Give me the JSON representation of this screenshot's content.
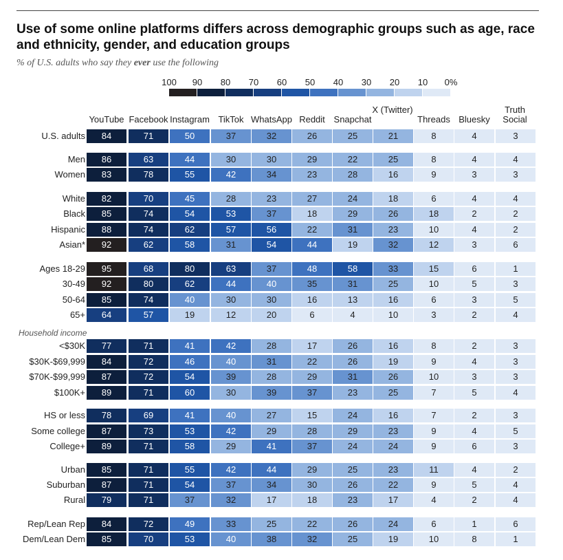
{
  "title": "Use of some online platforms differs across demographic groups such as age, race and ethnicity, gender, and education groups",
  "subtitle_pre": "% of U.S. adults who say they ",
  "subtitle_em": "ever",
  "subtitle_post": " use the following",
  "section_label": "Household income",
  "legend_labels": [
    "100",
    "90",
    "80",
    "70",
    "60",
    "50",
    "40",
    "30",
    "20",
    "10",
    "0%"
  ],
  "colors": {
    "scale": [
      "#231f20",
      "#0d1f3c",
      "#102e5e",
      "#173f80",
      "#1f55a5",
      "#3e72bf",
      "#6793d0",
      "#94b5e0",
      "#bfd3ee",
      "#dfe9f6"
    ],
    "text_dark": "#ffffff",
    "text_light": "#222222"
  },
  "chart_data": {
    "type": "table",
    "title": "Use of some online platforms differs across demographic groups such as age, race and ethnicity, gender, and education groups",
    "columns": [
      "YouTube",
      "Facebook",
      "Instagram",
      "TikTok",
      "WhatsApp",
      "Reddit",
      "Snapchat",
      "X (Twitter)",
      "Threads",
      "Bluesky",
      "Truth Social"
    ],
    "rows": [
      {
        "label": "U.S. adults",
        "values": [
          84,
          71,
          50,
          37,
          32,
          26,
          25,
          21,
          8,
          4,
          3
        ]
      },
      {
        "label": "Men",
        "values": [
          86,
          63,
          44,
          30,
          30,
          29,
          22,
          25,
          8,
          4,
          4
        ]
      },
      {
        "label": "Women",
        "values": [
          83,
          78,
          55,
          42,
          34,
          23,
          28,
          16,
          9,
          3,
          3
        ]
      },
      {
        "label": "White",
        "values": [
          82,
          70,
          45,
          28,
          23,
          27,
          24,
          18,
          6,
          4,
          4
        ]
      },
      {
        "label": "Black",
        "values": [
          85,
          74,
          54,
          53,
          37,
          18,
          29,
          26,
          18,
          2,
          2
        ]
      },
      {
        "label": "Hispanic",
        "values": [
          88,
          74,
          62,
          57,
          56,
          22,
          31,
          23,
          10,
          4,
          2
        ]
      },
      {
        "label": "Asian*",
        "values": [
          92,
          62,
          58,
          31,
          54,
          44,
          19,
          32,
          12,
          3,
          6
        ]
      },
      {
        "label": "Ages 18-29",
        "values": [
          95,
          68,
          80,
          63,
          37,
          48,
          58,
          33,
          15,
          6,
          1
        ]
      },
      {
        "label": "30-49",
        "values": [
          92,
          80,
          62,
          44,
          40,
          35,
          31,
          25,
          10,
          5,
          3
        ]
      },
      {
        "label": "50-64",
        "values": [
          85,
          74,
          40,
          30,
          30,
          16,
          13,
          16,
          6,
          3,
          5
        ]
      },
      {
        "label": "65+",
        "values": [
          64,
          57,
          19,
          12,
          20,
          6,
          4,
          10,
          3,
          2,
          4
        ]
      },
      {
        "label": "<$30K",
        "values": [
          77,
          71,
          41,
          42,
          28,
          17,
          26,
          16,
          8,
          2,
          3
        ]
      },
      {
        "label": "$30K-$69,999",
        "values": [
          84,
          72,
          46,
          40,
          31,
          22,
          26,
          19,
          9,
          4,
          3
        ]
      },
      {
        "label": "$70K-$99,999",
        "values": [
          87,
          72,
          54,
          39,
          28,
          29,
          31,
          26,
          10,
          3,
          3
        ]
      },
      {
        "label": "$100K+",
        "values": [
          89,
          71,
          60,
          30,
          39,
          37,
          23,
          25,
          7,
          5,
          4
        ]
      },
      {
        "label": "HS or less",
        "values": [
          78,
          69,
          41,
          40,
          27,
          15,
          24,
          16,
          7,
          2,
          3
        ]
      },
      {
        "label": "Some college",
        "values": [
          87,
          73,
          53,
          42,
          29,
          28,
          29,
          23,
          9,
          4,
          5
        ]
      },
      {
        "label": "College+",
        "values": [
          89,
          71,
          58,
          29,
          41,
          37,
          24,
          24,
          9,
          6,
          3
        ]
      },
      {
        "label": "Urban",
        "values": [
          85,
          71,
          55,
          42,
          44,
          29,
          25,
          23,
          11,
          4,
          2
        ]
      },
      {
        "label": "Suburban",
        "values": [
          87,
          71,
          54,
          37,
          34,
          30,
          26,
          22,
          9,
          5,
          4
        ]
      },
      {
        "label": "Rural",
        "values": [
          79,
          71,
          37,
          32,
          17,
          18,
          23,
          17,
          4,
          2,
          4
        ]
      },
      {
        "label": "Rep/Lean Rep",
        "values": [
          84,
          72,
          49,
          33,
          25,
          22,
          26,
          24,
          6,
          1,
          6
        ]
      },
      {
        "label": "Dem/Lean Dem",
        "values": [
          85,
          70,
          53,
          40,
          38,
          32,
          25,
          19,
          10,
          8,
          1
        ]
      }
    ]
  }
}
